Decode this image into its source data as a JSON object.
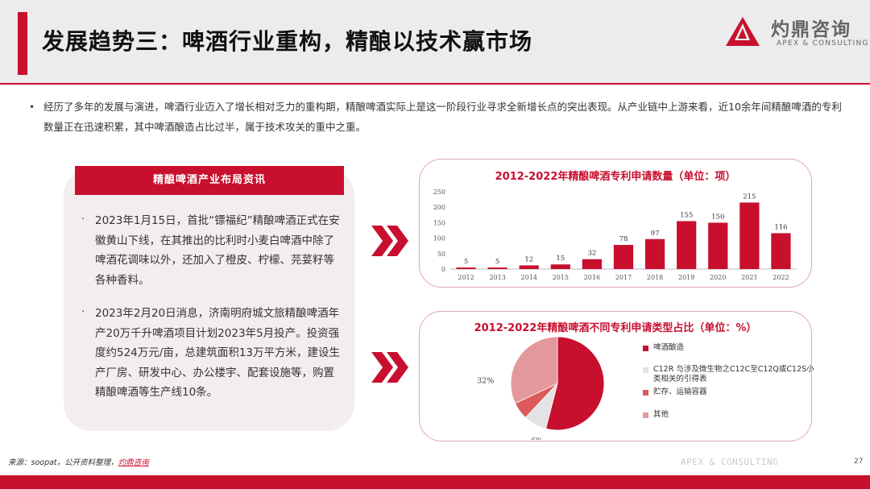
{
  "title": "发展趋势三：啤酒行业重构，精酿以技术赢市场",
  "logo": {
    "name": "灼鼎咨询",
    "tagline": "APEX & CONSULTING",
    "brand_color": "#c8102e"
  },
  "intro": {
    "bullet": "•",
    "text": "经历了多年的发展与演进，啤酒行业迈入了增长相对乏力的重构期，精酿啤酒实际上是这一阶段行业寻求全新增长点的突出表现。从产业链中上游来看，近10余年间精酿啤酒的专利数量正在迅速积累，其中啤酒酿造占比过半，属于技术攻关的重中之重。"
  },
  "news": {
    "header": "精酿啤酒产业布局资讯",
    "items": [
      {
        "bullet": "·",
        "text": "2023年1月15日，首批“镖福纪”精酿啤酒正式在安徽黄山下线，在其推出的比利时小麦白啤酒中除了啤酒花调味以外，还加入了橙皮、柠檬、芫荽籽等各种香料。"
      },
      {
        "bullet": "·",
        "text": "2023年2月20日消息，济南明府城文旅精酿啤酒年产20万千升啤酒项目计划2023年5月投产。投资强度约524万元/亩，总建筑面积13万平方米，建设生产厂房、研发中心、办公楼宇、配套设施等，购置精酿啤酒等生产线10条。"
      }
    ]
  },
  "chart_data": [
    {
      "type": "bar",
      "title": "2012-2022年精酿啤酒专利申请数量（单位：项）",
      "categories": [
        "2012",
        "2013",
        "2014",
        "2015",
        "2016",
        "2017",
        "2018",
        "2019",
        "2020",
        "2021",
        "2022"
      ],
      "values": [
        5,
        5,
        12,
        15,
        32,
        78,
        97,
        155,
        150,
        215,
        116
      ],
      "ylim": [
        0,
        250
      ],
      "yticks": [
        0,
        50,
        100,
        150,
        200,
        250
      ],
      "color": "#c8102e",
      "grid": false
    },
    {
      "type": "pie",
      "title": "2012-2022年精酿啤酒不同专利申请类型占比（单位：%）",
      "slices": [
        {
          "label": "啤酒酿造",
          "value": 54,
          "display": "54%",
          "color": "#c8102e"
        },
        {
          "label": "C12R 与涉及微生物之C12C至C12Q或C12S小类相关的引得表",
          "value": 8,
          "display": "8%",
          "color": "#e3e3e3"
        },
        {
          "label": "贮存、运输容器",
          "value": 6,
          "display": "6%",
          "color": "#dc5a5a"
        },
        {
          "label": "其他",
          "value": 32,
          "display": "32%",
          "color": "#e3999b"
        }
      ],
      "legend_position": "right"
    }
  ],
  "footer": {
    "source_prefix": "来源：soopat，公开资料整理，",
    "source_brand": "灼鼎咨询",
    "watermark": "APEX & CONSULTING",
    "page_number": "27"
  }
}
